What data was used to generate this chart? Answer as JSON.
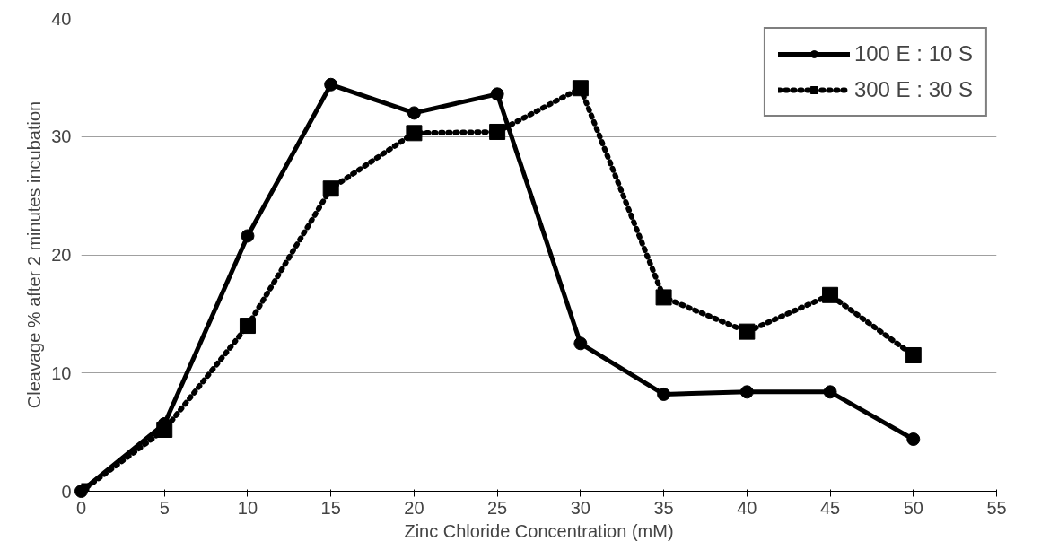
{
  "chart_data": {
    "type": "line",
    "xlabel": "Zinc Chloride Concentration (mM)",
    "ylabel": "Cleavage % after 2 minutes incubation",
    "x": [
      0,
      5,
      10,
      15,
      20,
      25,
      30,
      35,
      40,
      45,
      50
    ],
    "series": [
      {
        "name": "100 E : 10 S",
        "color": "#000000",
        "marker": "circle",
        "line_style": "solid",
        "values": [
          0,
          5.7,
          21.6,
          34.4,
          32.0,
          33.6,
          12.5,
          8.2,
          8.4,
          8.4,
          4.4
        ]
      },
      {
        "name": "300 E : 30 S",
        "color": "#000000",
        "marker": "square",
        "line_style": "dotted",
        "values": [
          0,
          5.2,
          14.0,
          25.6,
          30.3,
          30.4,
          34.1,
          16.4,
          13.5,
          16.6,
          11.5
        ]
      }
    ],
    "xlim": [
      0,
      55
    ],
    "ylim": [
      0,
      40
    ],
    "xticks": [
      0,
      5,
      10,
      15,
      20,
      25,
      30,
      35,
      40,
      45,
      50,
      55
    ],
    "yticks": [
      0,
      10,
      20,
      30,
      40
    ],
    "grid": "y",
    "legend": "top right"
  }
}
